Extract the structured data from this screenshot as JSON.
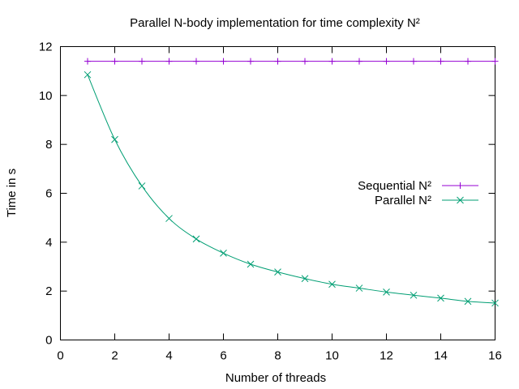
{
  "chart_data": {
    "type": "line",
    "title": "Parallel N-body implementation for time complexity N²",
    "xlabel": "Number of threads",
    "ylabel": "Time in s",
    "xlim": [
      0,
      16
    ],
    "ylim": [
      0,
      12
    ],
    "xticks": [
      0,
      2,
      4,
      6,
      8,
      10,
      12,
      14,
      16
    ],
    "yticks": [
      0,
      2,
      4,
      6,
      8,
      10,
      12
    ],
    "grid": false,
    "legend_position": "right",
    "x": [
      1,
      2,
      3,
      4,
      5,
      6,
      7,
      8,
      9,
      10,
      11,
      12,
      13,
      14,
      15,
      16
    ],
    "series": [
      {
        "name": "Sequential N²",
        "color": "#9400d3",
        "marker": "plus",
        "values": [
          11.4,
          11.4,
          11.4,
          11.4,
          11.4,
          11.4,
          11.4,
          11.4,
          11.4,
          11.4,
          11.4,
          11.4,
          11.4,
          11.4,
          11.4,
          11.4
        ]
      },
      {
        "name": "Parallel N²",
        "color": "#009e73",
        "marker": "cross",
        "values": [
          10.85,
          8.2,
          6.3,
          4.97,
          4.13,
          3.55,
          3.1,
          2.78,
          2.51,
          2.28,
          2.12,
          1.96,
          1.83,
          1.71,
          1.58,
          1.51
        ]
      }
    ]
  }
}
